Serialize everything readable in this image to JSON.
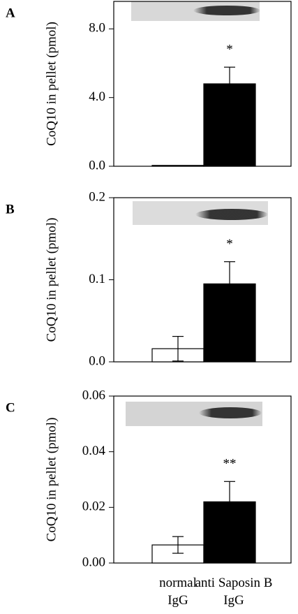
{
  "chart_data": [
    {
      "type": "bar",
      "panel_label": "A",
      "ylabel": "CoQ10 in pellet (pmol)",
      "categories": [
        null,
        null
      ],
      "values": [
        0.05,
        4.8
      ],
      "errors": [
        0,
        0.97
      ],
      "colors": [
        "#ffffff",
        "#000000"
      ],
      "ylim": [
        0,
        9.6
      ],
      "yticks": [
        {
          "value": 0,
          "label": "0.0"
        },
        {
          "value": 4,
          "label": "4.0"
        },
        {
          "value": 8,
          "label": "8.0"
        }
      ],
      "annotation": "*"
    },
    {
      "type": "bar",
      "panel_label": "B",
      "ylabel": "CoQ10 in pellet (pmol)",
      "categories": [
        null,
        null
      ],
      "values": [
        0.016,
        0.095
      ],
      "errors": [
        0.015,
        0.027
      ],
      "colors": [
        "#ffffff",
        "#000000"
      ],
      "ylim": [
        0,
        0.2
      ],
      "yticks": [
        {
          "value": 0,
          "label": "0.0"
        },
        0.1,
        0.2
      ],
      "annotation": "*"
    },
    {
      "type": "bar",
      "panel_label": "C",
      "ylabel": "CoQ10 in pellet (pmol)",
      "categories": [
        "normal IgG",
        "anti Saposin B IgG"
      ],
      "values": [
        0.0065,
        0.022
      ],
      "errors": [
        0.003,
        0.0073
      ],
      "colors": [
        "#ffffff",
        "#000000"
      ],
      "ylim": [
        0,
        0.06
      ],
      "yticks": [
        {
          "value": 0,
          "label": "0.00"
        },
        {
          "value": 0.02,
          "label": "0.02"
        },
        {
          "value": 0.04,
          "label": "0.04"
        },
        {
          "value": 0.06,
          "label": "0.06"
        }
      ],
      "annotation": "**"
    }
  ]
}
